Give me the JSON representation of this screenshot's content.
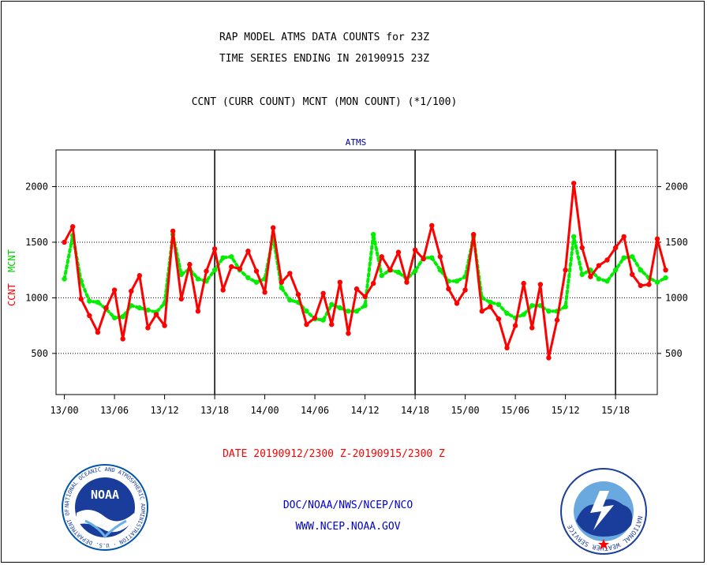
{
  "header": {
    "title_line1": "RAP MODEL ATMS DATA COUNTS for 23Z",
    "title_line2": "TIME SERIES ENDING IN 20190915 23Z",
    "subtitle": "CCNT (CURR COUNT) MCNT (MON COUNT) (*1/100)"
  },
  "footer": {
    "date_range": "DATE 20190912/2300 Z-20190915/2300 Z",
    "credit": "DOC/NOAA/NWS/NCEP/NCO",
    "website": "WWW.NCEP.NOAA.GOV"
  },
  "logos": {
    "noaa_text": "NOAA",
    "noaa_ring_text": "NATIONAL OCEANIC AND ATMOSPHERIC ADMINISTRATION · U.S. DEPARTMENT OF COMMERCE ·",
    "nws_ring_text": "NATIONAL WEATHER SERVICE"
  },
  "colors": {
    "ccnt": "#ff0000",
    "mcnt": "#00ee00",
    "axis_title": "#000099",
    "footer_blue": "#0000cc"
  },
  "chart_data": {
    "type": "line",
    "title": "ATMS",
    "ylabel_ccnt": "CCNT",
    "ylabel_mcnt": "MCNT",
    "x_unit": "hours from 2019-09-12 23Z, hourly samples",
    "xlim": [
      -1,
      71
    ],
    "ylim": [
      130,
      2330
    ],
    "yticks": [
      500,
      1000,
      1500,
      2000
    ],
    "ytick_labels": [
      "500",
      "1000",
      "1500",
      "2000"
    ],
    "xticks": [
      {
        "x": 0,
        "label": "13/00"
      },
      {
        "x": 6,
        "label": "13/06"
      },
      {
        "x": 12,
        "label": "13/12"
      },
      {
        "x": 18,
        "label": "13/18"
      },
      {
        "x": 24,
        "label": "14/00"
      },
      {
        "x": 30,
        "label": "14/06"
      },
      {
        "x": 36,
        "label": "14/12"
      },
      {
        "x": 42,
        "label": "14/18"
      },
      {
        "x": 48,
        "label": "15/00"
      },
      {
        "x": 54,
        "label": "15/06"
      },
      {
        "x": 60,
        "label": "15/12"
      },
      {
        "x": 66,
        "label": "15/18"
      }
    ],
    "day_boundaries": [
      18,
      42,
      66
    ],
    "grid": "horizontal dotted",
    "series": [
      {
        "name": "CCNT",
        "values": [
          1500,
          1640,
          990,
          840,
          690,
          910,
          1070,
          630,
          1060,
          1200,
          730,
          850,
          750,
          1600,
          990,
          1300,
          880,
          1240,
          1440,
          1070,
          1280,
          1260,
          1420,
          1240,
          1050,
          1630,
          1140,
          1220,
          1030,
          760,
          820,
          1040,
          760,
          1140,
          680,
          1080,
          1010,
          1130,
          1370,
          1250,
          1410,
          1140,
          1430,
          1350,
          1650,
          1370,
          1080,
          950,
          1070,
          1570,
          880,
          920,
          810,
          550,
          750,
          1130,
          730,
          1120,
          460,
          800,
          1250,
          2030,
          1450,
          1190,
          1290,
          1340,
          1450,
          1550,
          1210,
          1110,
          1120,
          1530,
          1250
        ]
      },
      {
        "name": "MCNT",
        "values": [
          1170,
          1560,
          1150,
          970,
          960,
          900,
          820,
          830,
          930,
          910,
          890,
          870,
          950,
          1570,
          1210,
          1260,
          1170,
          1150,
          1250,
          1360,
          1370,
          1250,
          1180,
          1140,
          1170,
          1550,
          1090,
          980,
          960,
          880,
          810,
          800,
          940,
          910,
          880,
          880,
          930,
          1570,
          1200,
          1250,
          1230,
          1170,
          1240,
          1360,
          1360,
          1250,
          1150,
          1150,
          1190,
          1550,
          1000,
          960,
          940,
          860,
          820,
          850,
          930,
          930,
          880,
          880,
          920,
          1550,
          1210,
          1250,
          1170,
          1150,
          1250,
          1360,
          1370,
          1250,
          1180,
          1140,
          1180
        ]
      }
    ]
  }
}
